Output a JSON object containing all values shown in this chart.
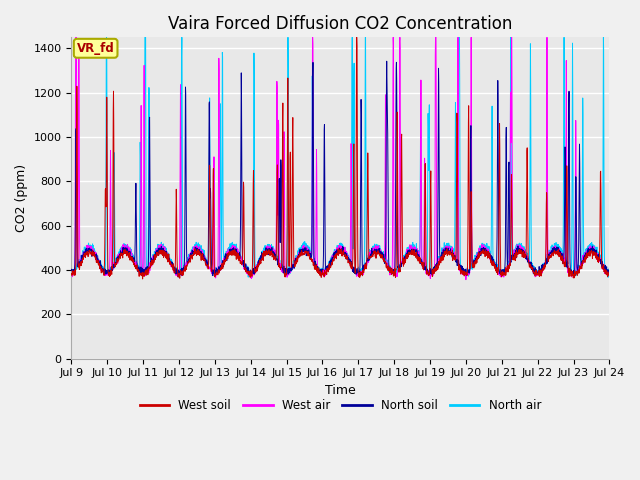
{
  "title": "Vaira Forced Diffusion CO2 Concentration",
  "xlabel": "Time",
  "ylabel": "CO2 (ppm)",
  "ylim": [
    0,
    1450
  ],
  "yticks": [
    0,
    200,
    400,
    600,
    800,
    1000,
    1200,
    1400
  ],
  "xtick_labels": [
    "Jul 9",
    "Jul 10",
    "Jul 11",
    "Jul 12",
    "Jul 13",
    "Jul 14",
    "Jul 15",
    "Jul 16",
    "Jul 17",
    "Jul 18",
    "Jul 19",
    "Jul 20",
    "Jul 21",
    "Jul 22",
    "Jul 23",
    "Jul 24"
  ],
  "legend_labels": [
    "West soil",
    "West air",
    "North soil",
    "North air"
  ],
  "colors": {
    "west_soil": "#cc0000",
    "west_air": "#ff00ff",
    "north_soil": "#000099",
    "north_air": "#00ccff"
  },
  "annotation_text": "VR_fd",
  "annotation_color": "#aa0000",
  "annotation_bbox_facecolor": "#ffff99",
  "annotation_bbox_edgecolor": "#aaaa00",
  "fig_facecolor": "#f0f0f0",
  "plot_facecolor": "#e8e8e8",
  "figsize": [
    6.4,
    4.8
  ],
  "dpi": 100,
  "title_fontsize": 12,
  "axis_label_fontsize": 9,
  "tick_fontsize": 8,
  "n_days": 15,
  "pts_per_day": 144
}
